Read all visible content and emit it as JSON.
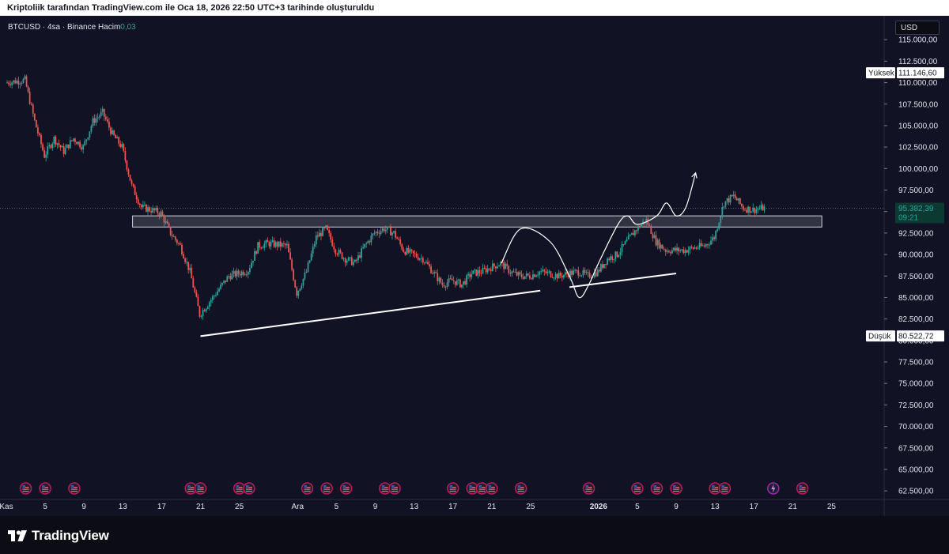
{
  "top_bar": {
    "text": "Kriptoliik tarafından TradingView.com ile Oca 18, 2026 22:50 UTC+3 tarihinde oluşturuldu"
  },
  "legend": {
    "symbol": "BTCUSD · 4sa · Binance",
    "volume_label": "Hacim",
    "volume_value": "0,03"
  },
  "currency": "USD",
  "brand": {
    "name": "TradingView",
    "logo_icon": "tradingview-logo-icon"
  },
  "markers": {
    "high": {
      "label": "Yüksek",
      "value": "111.146,60"
    },
    "low": {
      "label": "Düşük",
      "value": "80.522,72"
    },
    "last": {
      "value": "95.382,39",
      "countdown": "09:21"
    }
  },
  "colors": {
    "background": "#111223",
    "up": "#26a69a",
    "down": "#ef5350",
    "annotation": "#ffffff"
  },
  "event_icons": {
    "flag_icon": "us-flag-icon",
    "special_icon": "lightning-icon"
  },
  "chart_data": {
    "type": "candlestick",
    "title": "BTCUSD · 4sa · Binance",
    "ylim": [
      61500,
      117500
    ],
    "y_ticks": [
      62500,
      65000,
      67500,
      70000,
      72500,
      75000,
      77500,
      80000,
      82500,
      85000,
      87500,
      90000,
      92500,
      95000,
      97500,
      100000,
      102500,
      105000,
      107500,
      110000,
      112500,
      115000
    ],
    "y_tick_labels": [
      "62.500,00",
      "65.000,00",
      "67.500,00",
      "70.000,00",
      "72.500,00",
      "75.000,00",
      "77.500,00",
      "80.000,00",
      "82.500,00",
      "85.000,00",
      "87.500,00",
      "90.000,00",
      "92.500,00",
      "95.000,00",
      "97.500,00",
      "100.000,00",
      "102.500,00",
      "105.000,00",
      "107.500,00",
      "110.000,00",
      "112.500,00",
      "115.000,00"
    ],
    "x_range": [
      "2025-11-01",
      "2026-01-27"
    ],
    "x_ticks": [
      {
        "date": "2025-11-01",
        "label": "Kas",
        "bold": false
      },
      {
        "date": "2025-11-05",
        "label": "5",
        "bold": false
      },
      {
        "date": "2025-11-09",
        "label": "9",
        "bold": false
      },
      {
        "date": "2025-11-13",
        "label": "13",
        "bold": false
      },
      {
        "date": "2025-11-17",
        "label": "17",
        "bold": false
      },
      {
        "date": "2025-11-21",
        "label": "21",
        "bold": false
      },
      {
        "date": "2025-11-25",
        "label": "25",
        "bold": false
      },
      {
        "date": "2025-12-01",
        "label": "Ara",
        "bold": false
      },
      {
        "date": "2025-12-05",
        "label": "5",
        "bold": false
      },
      {
        "date": "2025-12-09",
        "label": "9",
        "bold": false
      },
      {
        "date": "2025-12-13",
        "label": "13",
        "bold": false
      },
      {
        "date": "2025-12-17",
        "label": "17",
        "bold": false
      },
      {
        "date": "2025-12-21",
        "label": "21",
        "bold": false
      },
      {
        "date": "2025-12-25",
        "label": "25",
        "bold": false
      },
      {
        "date": "2026-01-01",
        "label": "2026",
        "bold": true
      },
      {
        "date": "2026-01-05",
        "label": "5",
        "bold": false
      },
      {
        "date": "2026-01-09",
        "label": "9",
        "bold": false
      },
      {
        "date": "2026-01-13",
        "label": "13",
        "bold": false
      },
      {
        "date": "2026-01-17",
        "label": "17",
        "bold": false
      },
      {
        "date": "2026-01-21",
        "label": "21",
        "bold": false
      },
      {
        "date": "2026-01-25",
        "label": "25",
        "bold": false
      }
    ],
    "price_path": [
      [
        "2025-11-01",
        110000
      ],
      [
        "2025-11-03",
        110300
      ],
      [
        "2025-11-04",
        105500
      ],
      [
        "2025-11-05",
        101500
      ],
      [
        "2025-11-06",
        103500
      ],
      [
        "2025-11-07",
        102000
      ],
      [
        "2025-11-08",
        103500
      ],
      [
        "2025-11-09",
        102500
      ],
      [
        "2025-11-10",
        105500
      ],
      [
        "2025-11-11",
        106500
      ],
      [
        "2025-11-12",
        104000
      ],
      [
        "2025-11-13",
        102500
      ],
      [
        "2025-11-14",
        98000
      ],
      [
        "2025-11-15",
        95500
      ],
      [
        "2025-11-16",
        95200
      ],
      [
        "2025-11-17",
        94800
      ],
      [
        "2025-11-18",
        92500
      ],
      [
        "2025-11-19",
        91000
      ],
      [
        "2025-11-20",
        88000
      ],
      [
        "2025-11-21",
        83000
      ],
      [
        "2025-11-22",
        84500
      ],
      [
        "2025-11-23",
        86000
      ],
      [
        "2025-11-24",
        87500
      ],
      [
        "2025-11-25",
        87800
      ],
      [
        "2025-11-26",
        88200
      ],
      [
        "2025-11-27",
        91000
      ],
      [
        "2025-11-28",
        91300
      ],
      [
        "2025-11-30",
        91000
      ],
      [
        "2025-12-01",
        85500
      ],
      [
        "2025-12-02",
        88000
      ],
      [
        "2025-12-03",
        92000
      ],
      [
        "2025-12-04",
        93000
      ],
      [
        "2025-12-05",
        90500
      ],
      [
        "2025-12-06",
        89500
      ],
      [
        "2025-12-07",
        89000
      ],
      [
        "2025-12-08",
        91000
      ],
      [
        "2025-12-09",
        92500
      ],
      [
        "2025-12-10",
        93000
      ],
      [
        "2025-12-11",
        92500
      ],
      [
        "2025-12-12",
        90500
      ],
      [
        "2025-12-13",
        90000
      ],
      [
        "2025-12-14",
        89500
      ],
      [
        "2025-12-15",
        88000
      ],
      [
        "2025-12-16",
        86500
      ],
      [
        "2025-12-17",
        87000
      ],
      [
        "2025-12-18",
        86500
      ],
      [
        "2025-12-19",
        87800
      ],
      [
        "2025-12-20",
        88000
      ],
      [
        "2025-12-21",
        88500
      ],
      [
        "2025-12-22",
        89000
      ],
      [
        "2025-12-23",
        88000
      ],
      [
        "2025-12-24",
        87500
      ],
      [
        "2025-12-25",
        87500
      ],
      [
        "2025-12-26",
        88000
      ],
      [
        "2025-12-27",
        87800
      ],
      [
        "2025-12-28",
        87500
      ],
      [
        "2025-12-29",
        87800
      ],
      [
        "2025-12-30",
        88000
      ],
      [
        "2025-12-31",
        87500
      ],
      [
        "2026-01-01",
        88000
      ],
      [
        "2026-01-02",
        89500
      ],
      [
        "2026-01-03",
        90000
      ],
      [
        "2026-01-04",
        91500
      ],
      [
        "2026-01-05",
        93000
      ],
      [
        "2026-01-06",
        94000
      ],
      [
        "2026-01-07",
        91500
      ],
      [
        "2026-01-08",
        90500
      ],
      [
        "2026-01-09",
        90500
      ],
      [
        "2026-01-10",
        90500
      ],
      [
        "2026-01-11",
        90800
      ],
      [
        "2026-01-12",
        91000
      ],
      [
        "2026-01-13",
        92000
      ],
      [
        "2026-01-14",
        96000
      ],
      [
        "2026-01-15",
        96800
      ],
      [
        "2026-01-16",
        95400
      ],
      [
        "2026-01-17",
        95200
      ],
      [
        "2026-01-18",
        95400
      ]
    ],
    "resistance_zone": {
      "start": "2025-11-14",
      "end": "2026-01-24",
      "top": 94500,
      "bottom": 93200
    },
    "support_line_lower": {
      "start": [
        "2025-11-21",
        80500
      ],
      "end": [
        "2025-12-26",
        85800
      ]
    },
    "support_line_upper": {
      "start": [
        "2025-12-29",
        86200
      ],
      "end": [
        "2026-01-09",
        87800
      ]
    },
    "projection_path": [
      [
        "2025-12-22",
        89000
      ],
      [
        "2025-12-24",
        93000
      ],
      [
        "2025-12-27",
        91500
      ],
      [
        "2025-12-29",
        87500
      ],
      [
        "2025-12-30",
        85000
      ],
      [
        "2025-12-31",
        86500
      ],
      [
        "2026-01-01",
        89000
      ],
      [
        "2026-01-03",
        93500
      ],
      [
        "2026-01-04",
        94500
      ],
      [
        "2026-01-05",
        93500
      ],
      [
        "2026-01-07",
        94500
      ],
      [
        "2026-01-08",
        96000
      ],
      [
        "2026-01-09",
        94500
      ],
      [
        "2026-01-10",
        95500
      ],
      [
        "2026-01-11",
        99500
      ]
    ],
    "event_dates": [
      "2025-11-03",
      "2025-11-05",
      "2025-11-08",
      "2025-11-20",
      "2025-11-21",
      "2025-11-25",
      "2025-11-26",
      "2025-12-02",
      "2025-12-04",
      "2025-12-06",
      "2025-12-10",
      "2025-12-11",
      "2025-12-17",
      "2025-12-19",
      "2025-12-20",
      "2025-12-21",
      "2025-12-24",
      "2025-12-31",
      "2026-01-05",
      "2026-01-07",
      "2026-01-09",
      "2026-01-13",
      "2026-01-14",
      "2026-01-22"
    ],
    "special_event_date": "2026-01-19"
  }
}
